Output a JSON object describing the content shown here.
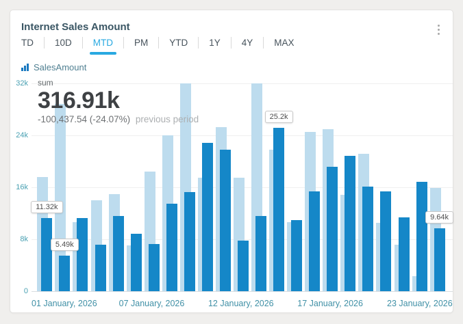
{
  "widget": {
    "title": "Internet Sales Amount",
    "menu_icon": "kebab-menu"
  },
  "tabs": {
    "items": [
      "TD",
      "10D",
      "MTD",
      "PM",
      "YTD",
      "1Y",
      "4Y",
      "MAX"
    ],
    "active": "MTD"
  },
  "legend": {
    "icon": "bar-chart",
    "label": "SalesAmount"
  },
  "summary": {
    "label": "sum",
    "value": "316.91k",
    "delta": "-100,437.54 (-24.07%)",
    "delta_note": "previous period"
  },
  "colors": {
    "accent": "#29a9e1",
    "current_bar": "#1587c8",
    "previous_bar": "#bddcee",
    "axis_text": "#4496ab",
    "title_text": "#3a5664"
  },
  "chart_data": {
    "type": "bar",
    "title": "Internet Sales Amount",
    "categories": [
      1,
      2,
      3,
      4,
      5,
      6,
      7,
      8,
      9,
      10,
      11,
      12,
      13,
      14,
      15,
      16,
      17,
      18,
      19,
      20,
      21,
      22,
      23
    ],
    "x_axis_month": "January, 2026",
    "series": [
      {
        "name": "SalesAmount",
        "period": "current",
        "color": "#1587c8",
        "values": [
          11320,
          5490,
          11300,
          7200,
          11600,
          8800,
          7300,
          13500,
          15300,
          22800,
          21800,
          7800,
          11600,
          25200,
          10900,
          15400,
          19200,
          20800,
          16100,
          15400,
          11400,
          16800,
          9640
        ]
      },
      {
        "name": "SalesAmount",
        "period": "previous",
        "color": "#bddcee",
        "values": [
          17600,
          28800,
          10600,
          14000,
          15000,
          7100,
          18400,
          24000,
          32000,
          17500,
          25300,
          17500,
          32000,
          21800,
          10600,
          24500,
          25000,
          14800,
          21200,
          10500,
          7200,
          2300,
          15900
        ]
      }
    ],
    "ylim": [
      0,
      32000
    ],
    "y_ticks": [
      "32k",
      "24k",
      "16k",
      "8k",
      "0"
    ],
    "y_tick_values": [
      32000,
      24000,
      16000,
      8000,
      0
    ],
    "x_ticks": [
      {
        "day": 1,
        "label": "01 January, 2026"
      },
      {
        "day": 7,
        "label": "07 January, 2026"
      },
      {
        "day": 12,
        "label": "12 January, 2026"
      },
      {
        "day": 17,
        "label": "17 January, 2026"
      },
      {
        "day": 23,
        "label": "23 January, 2026"
      }
    ],
    "callouts": [
      {
        "day": 1,
        "label": "11.32k"
      },
      {
        "day": 2,
        "label": "5.49k"
      },
      {
        "day": 14,
        "label": "25.2k"
      },
      {
        "day": 23,
        "label": "9.64k"
      }
    ],
    "grid": true,
    "legend_position": "top-left"
  }
}
